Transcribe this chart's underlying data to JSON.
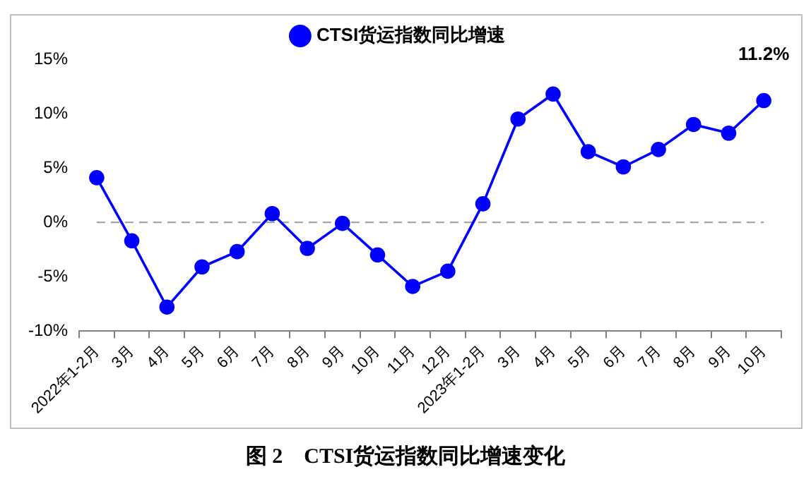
{
  "chart_data": {
    "type": "line",
    "title": "图 2　CTSI货运指数同比增速变化",
    "categories": [
      "2022年1-2月",
      "3月",
      "4月",
      "5月",
      "6月",
      "7月",
      "8月",
      "9月",
      "10月",
      "11月",
      "12月",
      "2023年1-2月",
      "3月",
      "4月",
      "5月",
      "6月",
      "7月",
      "8月",
      "9月",
      "10月"
    ],
    "series": [
      {
        "name": "CTSI货运指数同比增速",
        "color": "#0000ff",
        "values": [
          4.1,
          -1.7,
          -7.8,
          -4.1,
          -2.7,
          0.8,
          -2.4,
          -0.1,
          -3.0,
          -5.9,
          -4.5,
          1.7,
          9.5,
          11.8,
          6.5,
          5.1,
          6.7,
          9.0,
          8.2,
          11.2
        ],
        "value_labels": [
          null,
          null,
          null,
          null,
          null,
          null,
          null,
          null,
          null,
          null,
          null,
          null,
          null,
          null,
          null,
          null,
          null,
          null,
          null,
          "11.2%"
        ]
      }
    ],
    "ylim": [
      -10,
      15
    ],
    "yticks": [
      {
        "value": -10,
        "label": "-10%"
      },
      {
        "value": -5,
        "label": "-5%"
      },
      {
        "value": 0,
        "label": "0%"
      },
      {
        "value": 5,
        "label": "5%"
      },
      {
        "value": 10,
        "label": "10%"
      },
      {
        "value": 15,
        "label": "15%"
      }
    ],
    "ref_lines": [
      {
        "axis": "y",
        "value": 0,
        "color": "#a6a6a6",
        "line_style": "dashed"
      }
    ],
    "grid": false,
    "legend": "top",
    "marker": "circle",
    "line_style": "solid"
  }
}
